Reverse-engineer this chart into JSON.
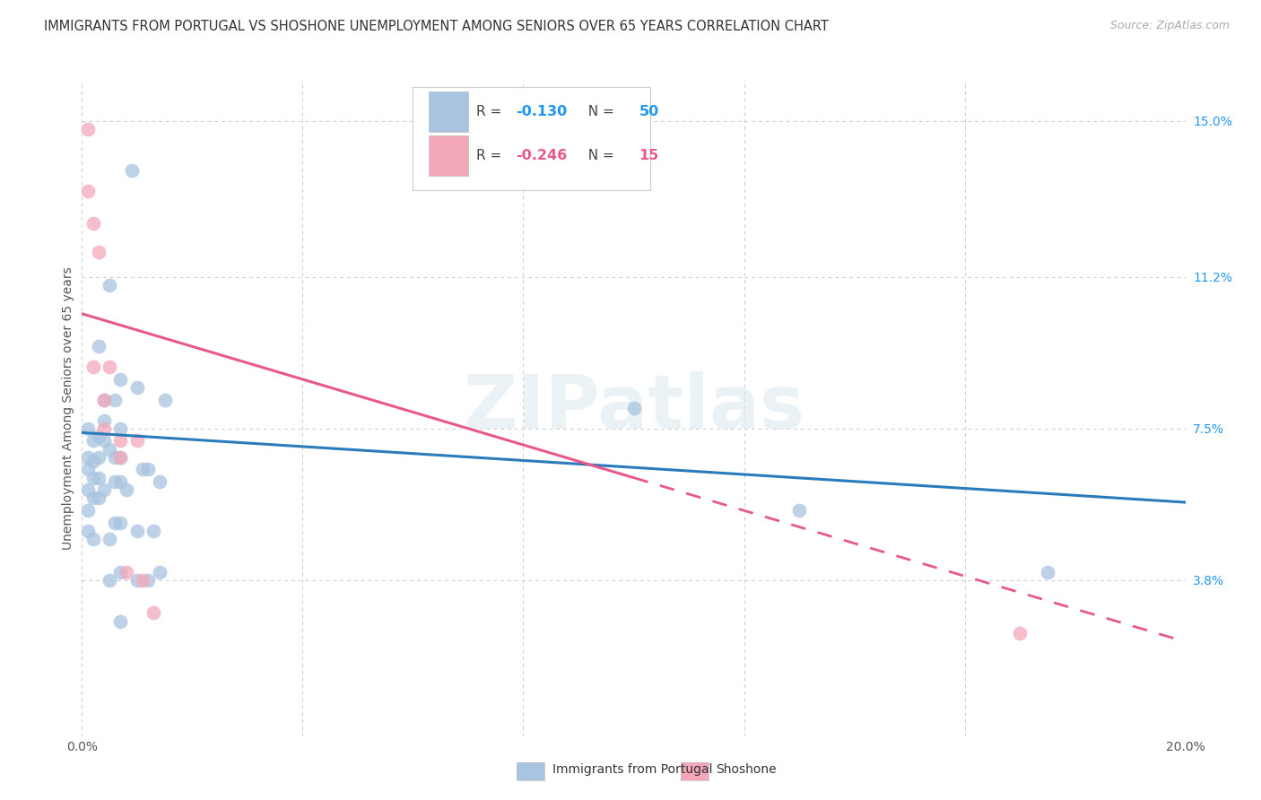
{
  "title": "IMMIGRANTS FROM PORTUGAL VS SHOSHONE UNEMPLOYMENT AMONG SENIORS OVER 65 YEARS CORRELATION CHART",
  "source": "Source: ZipAtlas.com",
  "ylabel": "Unemployment Among Seniors over 65 years",
  "xlim": [
    0.0,
    0.2
  ],
  "ylim": [
    0.0,
    0.16
  ],
  "xtick_positions": [
    0.0,
    0.04,
    0.08,
    0.12,
    0.16,
    0.2
  ],
  "xtick_labels": [
    "0.0%",
    "",
    "",
    "",
    "",
    "20.0%"
  ],
  "ytick_positions": [
    0.038,
    0.075,
    0.112,
    0.15
  ],
  "ytick_labels": [
    "3.8%",
    "7.5%",
    "11.2%",
    "15.0%"
  ],
  "watermark": "ZIPatlas",
  "blue_R": "-0.130",
  "blue_N": "50",
  "pink_R": "-0.246",
  "pink_N": "15",
  "legend_label_blue": "Immigrants from Portugal",
  "legend_label_pink": "Shoshone",
  "blue_scatter_color": "#a8c4e0",
  "pink_scatter_color": "#f4a7b9",
  "blue_line_color": "#2b7bba",
  "pink_line_color": "#e8588a",
  "background_color": "#ffffff",
  "grid_color": "#cccccc",
  "scatter_size": 130,
  "scatter_alpha": 0.75,
  "blue_scatter": [
    [
      0.001,
      0.065
    ],
    [
      0.001,
      0.06
    ],
    [
      0.001,
      0.055
    ],
    [
      0.001,
      0.05
    ],
    [
      0.001,
      0.075
    ],
    [
      0.001,
      0.068
    ],
    [
      0.002,
      0.072
    ],
    [
      0.002,
      0.067
    ],
    [
      0.002,
      0.063
    ],
    [
      0.002,
      0.058
    ],
    [
      0.002,
      0.048
    ],
    [
      0.003,
      0.095
    ],
    [
      0.003,
      0.073
    ],
    [
      0.003,
      0.068
    ],
    [
      0.003,
      0.063
    ],
    [
      0.003,
      0.058
    ],
    [
      0.004,
      0.082
    ],
    [
      0.004,
      0.077
    ],
    [
      0.004,
      0.072
    ],
    [
      0.004,
      0.06
    ],
    [
      0.005,
      0.11
    ],
    [
      0.005,
      0.07
    ],
    [
      0.005,
      0.048
    ],
    [
      0.005,
      0.038
    ],
    [
      0.006,
      0.082
    ],
    [
      0.006,
      0.068
    ],
    [
      0.006,
      0.062
    ],
    [
      0.006,
      0.052
    ],
    [
      0.007,
      0.087
    ],
    [
      0.007,
      0.075
    ],
    [
      0.007,
      0.068
    ],
    [
      0.007,
      0.062
    ],
    [
      0.007,
      0.052
    ],
    [
      0.007,
      0.04
    ],
    [
      0.007,
      0.028
    ],
    [
      0.008,
      0.06
    ],
    [
      0.009,
      0.138
    ],
    [
      0.01,
      0.085
    ],
    [
      0.01,
      0.05
    ],
    [
      0.01,
      0.038
    ],
    [
      0.011,
      0.065
    ],
    [
      0.012,
      0.065
    ],
    [
      0.012,
      0.038
    ],
    [
      0.013,
      0.05
    ],
    [
      0.014,
      0.062
    ],
    [
      0.014,
      0.04
    ],
    [
      0.015,
      0.082
    ],
    [
      0.1,
      0.08
    ],
    [
      0.13,
      0.055
    ],
    [
      0.175,
      0.04
    ]
  ],
  "pink_scatter": [
    [
      0.001,
      0.148
    ],
    [
      0.001,
      0.133
    ],
    [
      0.002,
      0.125
    ],
    [
      0.002,
      0.09
    ],
    [
      0.003,
      0.118
    ],
    [
      0.004,
      0.082
    ],
    [
      0.004,
      0.075
    ],
    [
      0.005,
      0.09
    ],
    [
      0.007,
      0.072
    ],
    [
      0.007,
      0.068
    ],
    [
      0.008,
      0.04
    ],
    [
      0.01,
      0.072
    ],
    [
      0.011,
      0.038
    ],
    [
      0.013,
      0.03
    ],
    [
      0.17,
      0.025
    ]
  ],
  "blue_line": [
    [
      0.0,
      0.074
    ],
    [
      0.2,
      0.057
    ]
  ],
  "pink_line_solid": [
    [
      0.0,
      0.103
    ],
    [
      0.1,
      0.063
    ]
  ],
  "pink_line_dashed": [
    [
      0.1,
      0.063
    ],
    [
      0.2,
      0.023
    ]
  ]
}
